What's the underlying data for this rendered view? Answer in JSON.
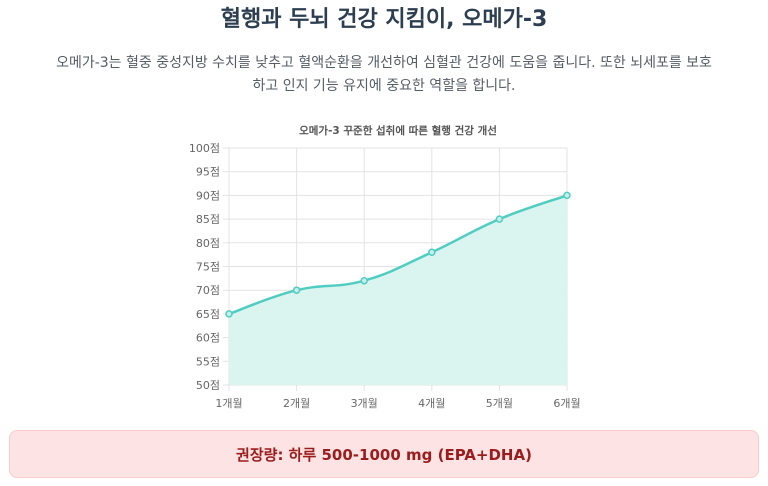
{
  "header": {
    "title": "혈행과 두뇌 건강 지킴이, 오메가-3"
  },
  "description": {
    "line1": "오메가-3는 혈중 중성지방 수치를 낮추고 혈액순환을 개선하여 심혈관 건강에 도움을 줍니다. 또한 뇌세포를 보호",
    "line2": "하고 인지 기능 유지에 중요한 역할을 합니다."
  },
  "chart_data": {
    "type": "area",
    "title": "오메가-3 꾸준한 섭취에 따른 혈행 건강 개선",
    "categories": [
      "1개월",
      "2개월",
      "3개월",
      "4개월",
      "5개월",
      "6개월"
    ],
    "values": [
      65,
      70,
      72,
      78,
      85,
      90
    ],
    "ylim": [
      50,
      100
    ],
    "yticks": [
      "100점",
      "95점",
      "90점",
      "85점",
      "80점",
      "75점",
      "70점",
      "65점",
      "60점",
      "55점",
      "50점"
    ],
    "xlabel": "",
    "ylabel": "",
    "grid": true,
    "line_color": "#4fcdc0",
    "fill_color": "#d8f3ef"
  },
  "recommendation": {
    "text": "권장량: 하루 500-1000 mg (EPA+DHA)"
  }
}
